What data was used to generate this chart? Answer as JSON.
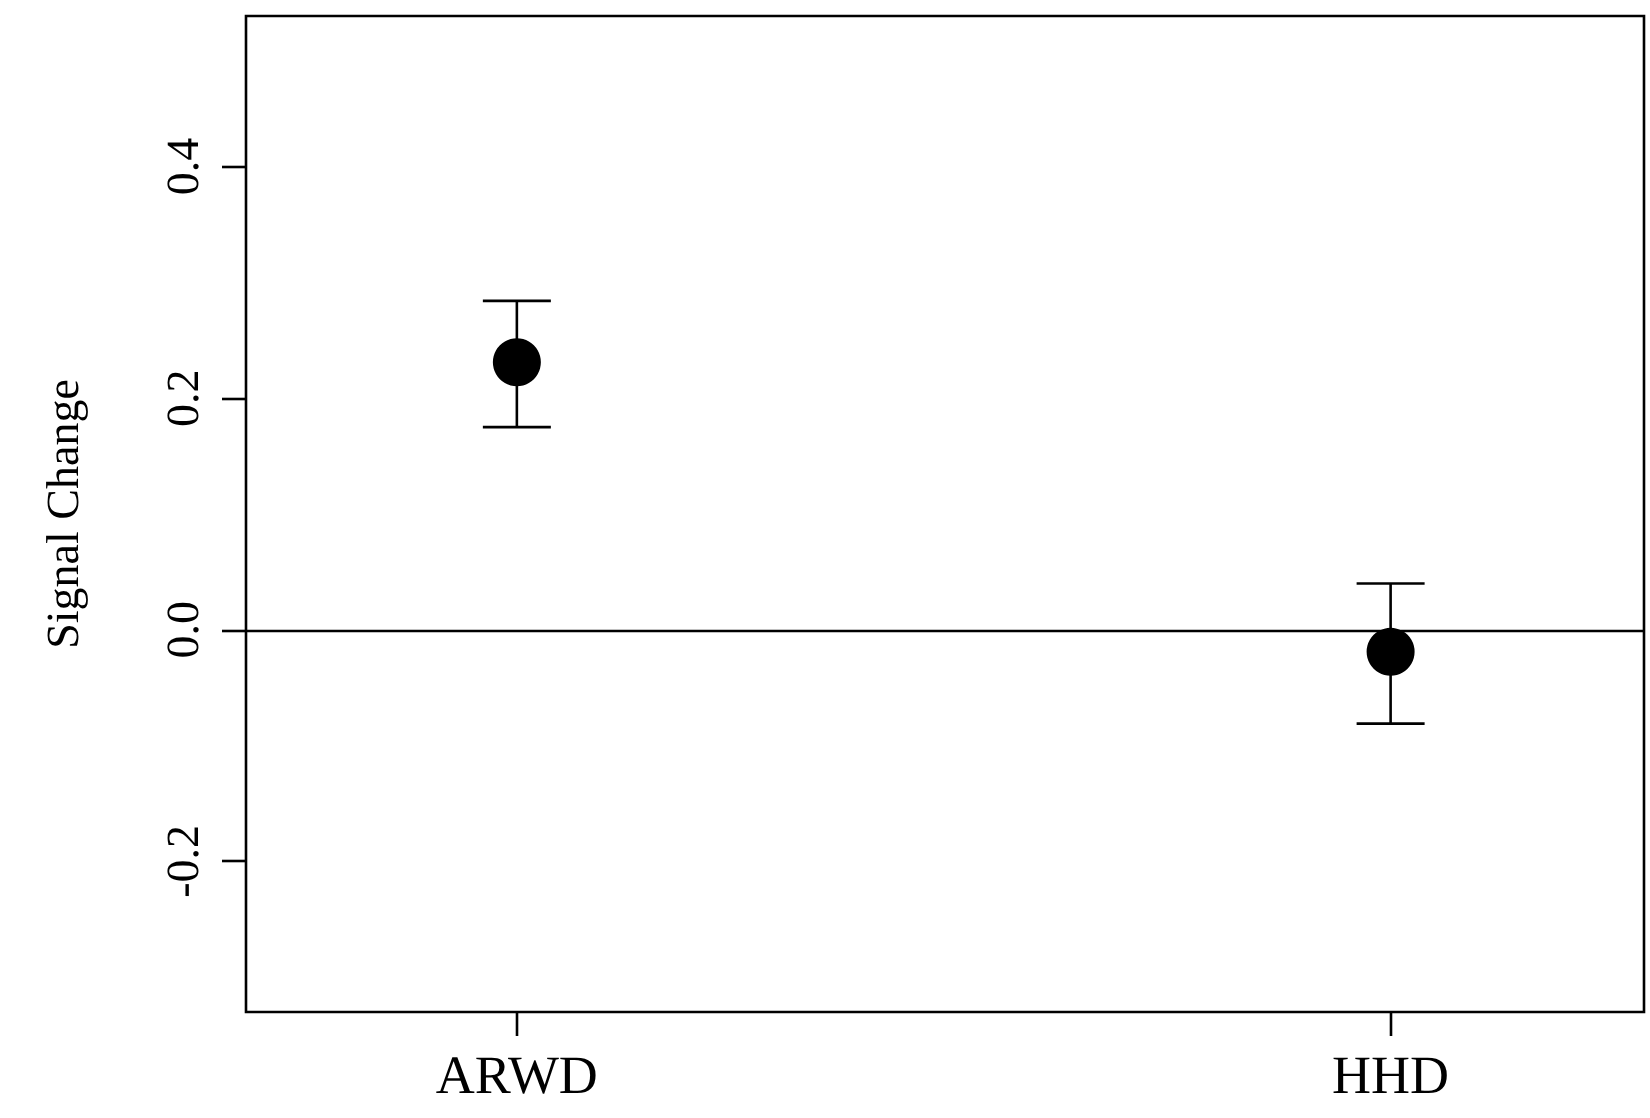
{
  "chart_data": {
    "type": "scatter",
    "ylabel": "Signal Change",
    "categories": [
      "ARWD",
      "HHD"
    ],
    "series": [
      {
        "color": "#000000",
        "values": [
          0.231,
          -0.019
        ],
        "errors": [
          [
            0.175,
            0.284
          ],
          [
            -0.081,
            0.04
          ]
        ]
      }
    ],
    "ylim": [
      -0.33,
      0.53
    ],
    "yticks": [
      -0.2,
      {
        "value": 0,
        "label": "0.0"
      },
      0.2,
      0.4
    ],
    "ref_lines": [
      {
        "axis": "y",
        "value": 0,
        "color": "#000000",
        "line_style": "solid"
      }
    ],
    "marker": "circle",
    "grid": false
  }
}
